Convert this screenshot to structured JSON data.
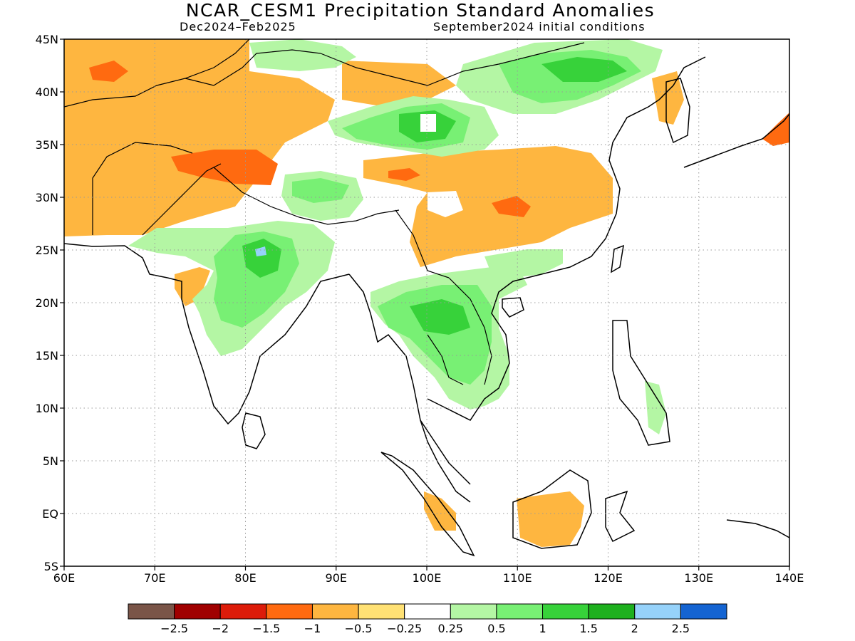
{
  "title": "NCAR_CESM1 Precipitation Standard Anomalies",
  "subtitle_left": "Dec2024–Feb2025",
  "subtitle_right": "September2024 initial conditions",
  "chart_data": {
    "type": "heatmap",
    "x_axis": {
      "ticks": [
        "60E",
        "70E",
        "80E",
        "90E",
        "100E",
        "110E",
        "120E",
        "130E",
        "140E"
      ],
      "range_deg": [
        60,
        140
      ]
    },
    "y_axis": {
      "ticks": [
        "5S",
        "EQ",
        "5N",
        "10N",
        "15N",
        "20N",
        "25N",
        "30N",
        "35N",
        "40N",
        "45N"
      ],
      "range_deg": [
        -5,
        45
      ]
    },
    "grid": "dotted",
    "colorbar": {
      "colors": [
        "#7a5548",
        "#a00000",
        "#dd1c0a",
        "#ff6a10",
        "#feb640",
        "#ffe174",
        "#ffffff",
        "#b4f6a4",
        "#78f074",
        "#37d23a",
        "#1eb01e",
        "#96d2fa",
        "#1464d2"
      ],
      "labels": [
        "−2.5",
        "−2",
        "−1.5",
        "−1",
        "−0.5",
        "−0.25",
        "0.25",
        "0.5",
        "1",
        "1.5",
        "2",
        "2.5"
      ]
    }
  }
}
